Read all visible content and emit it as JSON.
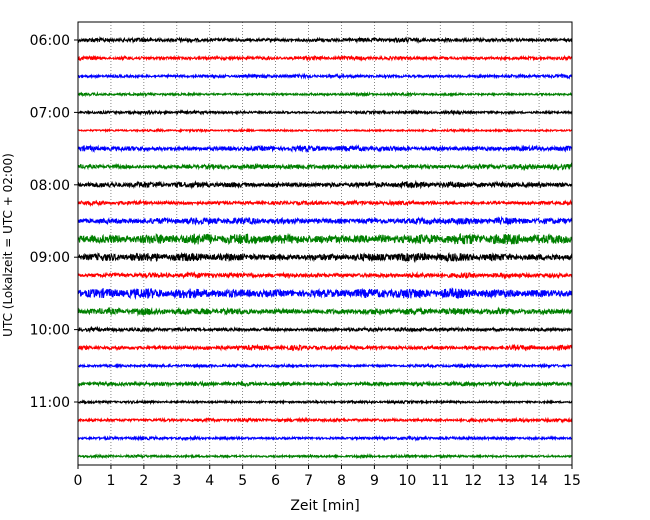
{
  "chart_data": {
    "type": "line",
    "xlabel": "Zeit  [min]",
    "ylabel": "UTC (Lokalzeit = UTC + 02:00)",
    "xlim": [
      0,
      15
    ],
    "x_ticks": [
      0,
      1,
      2,
      3,
      4,
      5,
      6,
      7,
      8,
      9,
      10,
      11,
      12,
      13,
      14,
      15
    ],
    "y_ticks": [
      "06:00",
      "07:00",
      "08:00",
      "09:00",
      "10:00",
      "11:00"
    ],
    "grid": "vertical-dotted",
    "colors": [
      "#000000",
      "#ff0000",
      "#0000ff",
      "#008000"
    ],
    "traces": [
      {
        "start": "06:00",
        "color": "#000000",
        "amplitude": 1.0
      },
      {
        "start": "06:15",
        "color": "#ff0000",
        "amplitude": 0.9
      },
      {
        "start": "06:30",
        "color": "#0000ff",
        "amplitude": 0.8
      },
      {
        "start": "06:45",
        "color": "#008000",
        "amplitude": 0.6
      },
      {
        "start": "07:00",
        "color": "#000000",
        "amplitude": 0.7
      },
      {
        "start": "07:15",
        "color": "#ff0000",
        "amplitude": 0.5
      },
      {
        "start": "07:30",
        "color": "#0000ff",
        "amplitude": 1.3
      },
      {
        "start": "07:45",
        "color": "#008000",
        "amplitude": 1.2
      },
      {
        "start": "08:00",
        "color": "#000000",
        "amplitude": 1.4
      },
      {
        "start": "08:15",
        "color": "#ff0000",
        "amplitude": 1.0
      },
      {
        "start": "08:30",
        "color": "#0000ff",
        "amplitude": 1.6
      },
      {
        "start": "08:45",
        "color": "#008000",
        "amplitude": 2.6
      },
      {
        "start": "09:00",
        "color": "#000000",
        "amplitude": 2.0
      },
      {
        "start": "09:15",
        "color": "#ff0000",
        "amplitude": 1.2
      },
      {
        "start": "09:30",
        "color": "#0000ff",
        "amplitude": 2.4
      },
      {
        "start": "09:45",
        "color": "#008000",
        "amplitude": 1.6
      },
      {
        "start": "10:00",
        "color": "#000000",
        "amplitude": 0.9
      },
      {
        "start": "10:15",
        "color": "#ff0000",
        "amplitude": 1.1
      },
      {
        "start": "10:30",
        "color": "#0000ff",
        "amplitude": 0.7
      },
      {
        "start": "10:45",
        "color": "#008000",
        "amplitude": 1.0
      },
      {
        "start": "11:00",
        "color": "#000000",
        "amplitude": 0.6
      },
      {
        "start": "11:15",
        "color": "#ff0000",
        "amplitude": 0.8
      },
      {
        "start": "11:30",
        "color": "#0000ff",
        "amplitude": 0.7
      },
      {
        "start": "11:45",
        "color": "#008000",
        "amplitude": 0.6
      }
    ]
  }
}
